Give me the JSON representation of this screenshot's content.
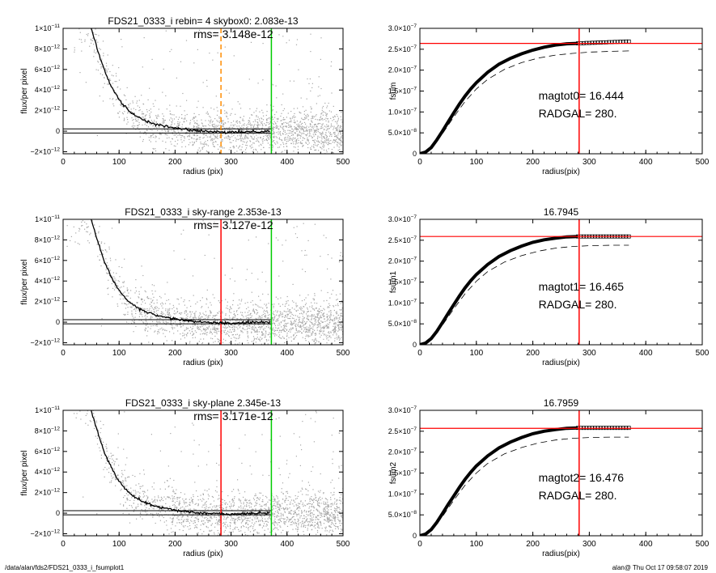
{
  "footer": {
    "path": "/data/alan/fds2/FDS21_0333_i_fsumplot1",
    "stamp": "alan@  Thu Oct 17 09:58:07 2019"
  },
  "chart_data": [
    {
      "type": "scatter",
      "title": "FDS21_0333_i rebin= 4    skybox0:  2.083e-13",
      "annotation": "rms= 3.148e-12",
      "xlabel": "radius (pix)",
      "ylabel": "flux/per pixel",
      "xlim": [
        0,
        500
      ],
      "ylim": [
        -2.2e-12,
        1e-11
      ],
      "x_ticks": [
        0,
        100,
        200,
        300,
        400,
        500
      ],
      "x_tick_labels": [
        "0",
        "100",
        "200",
        "300",
        "400",
        "500"
      ],
      "y_ticks": [
        -2e-12,
        0,
        2e-12,
        4e-12,
        6e-12,
        8e-12,
        1e-11
      ],
      "y_tick_labels": [
        {
          "m": "−2×10",
          "e": "−12"
        },
        {
          "m": "0",
          "e": ""
        },
        {
          "m": "2×10",
          "e": "−12"
        },
        {
          "m": "4×10",
          "e": "−12"
        },
        {
          "m": "6×10",
          "e": "−12"
        },
        {
          "m": "8×10",
          "e": "−12"
        },
        {
          "m": "1×10",
          "e": "−11"
        }
      ],
      "profile": {
        "x": [
          50,
          60,
          70,
          80,
          90,
          100,
          110,
          120,
          130,
          140,
          150,
          170,
          200,
          230,
          260,
          280,
          300,
          330,
          370
        ],
        "y": [
          1e-11,
          8.2e-12,
          6.5e-12,
          5.1e-12,
          4e-12,
          3.1e-12,
          2.4e-12,
          1.9e-12,
          1.5e-12,
          1.2e-12,
          9.5e-13,
          6e-13,
          3e-13,
          1e-13,
          -5e-14,
          -1e-13,
          -1.2e-13,
          -5e-14,
          0
        ],
        "color": "#000000"
      },
      "sky_band": [
        2.2e-13,
        -1.8e-13
      ],
      "vlines": [
        {
          "x": 282,
          "color": "#ff8c00",
          "style": "dashed"
        },
        {
          "x": 372,
          "color": "#00cc00",
          "style": "solid"
        }
      ],
      "hlines": [],
      "scatter_color": "#a6a6a6"
    },
    {
      "type": "line",
      "title": "",
      "annotation_lines": [
        "magtot0=  16.444",
        "RADGAL=    280."
      ],
      "xlabel": "radius(pix)",
      "ylabel": "fsum",
      "xlim": [
        0,
        500
      ],
      "ylim": [
        0,
        3e-07
      ],
      "x_ticks": [
        0,
        100,
        200,
        300,
        400,
        500
      ],
      "x_tick_labels": [
        "0",
        "100",
        "200",
        "300",
        "400",
        "500"
      ],
      "y_ticks": [
        0,
        5e-08,
        1e-07,
        1.5e-07,
        2e-07,
        2.5e-07,
        3e-07
      ],
      "y_tick_labels": [
        {
          "m": "0",
          "e": ""
        },
        {
          "m": "5.0×10",
          "e": "−8"
        },
        {
          "m": "1.0×10",
          "e": "−7"
        },
        {
          "m": "1.5×10",
          "e": "−7"
        },
        {
          "m": "2.0×10",
          "e": "−7"
        },
        {
          "m": "2.5×10",
          "e": "−7"
        },
        {
          "m": "3.0×10",
          "e": "−7"
        }
      ],
      "series": [
        {
          "type": "curve",
          "style": "thick",
          "color": "#000000",
          "x": [
            0,
            10,
            20,
            30,
            40,
            50,
            60,
            70,
            80,
            90,
            100,
            120,
            140,
            160,
            180,
            200,
            220,
            240,
            260,
            280
          ],
          "y": [
            0,
            4e-09,
            1.5e-08,
            3.3e-08,
            5.4e-08,
            7.6e-08,
            9.8e-08,
            1.19e-07,
            1.38e-07,
            1.55e-07,
            1.7e-07,
            1.95e-07,
            2.14e-07,
            2.28e-07,
            2.39e-07,
            2.48e-07,
            2.55e-07,
            2.6e-07,
            2.63e-07,
            2.64e-07
          ]
        },
        {
          "type": "markers",
          "color": "#000000",
          "x": [
            280,
            285,
            290,
            295,
            300,
            305,
            310,
            315,
            320,
            325,
            330,
            335,
            340,
            345,
            350,
            355,
            360,
            365,
            370
          ],
          "y": [
            2.64e-07,
            2.645e-07,
            2.645e-07,
            2.65e-07,
            2.65e-07,
            2.655e-07,
            2.655e-07,
            2.66e-07,
            2.66e-07,
            2.665e-07,
            2.665e-07,
            2.67e-07,
            2.67e-07,
            2.675e-07,
            2.675e-07,
            2.68e-07,
            2.68e-07,
            2.685e-07,
            2.685e-07
          ]
        },
        {
          "type": "curve",
          "style": "dashed",
          "color": "#000000",
          "x": [
            0,
            20,
            40,
            60,
            80,
            100,
            120,
            150,
            180,
            210,
            240,
            270,
            300,
            340,
            370
          ],
          "y": [
            0,
            1.3e-08,
            4.8e-08,
            8.8e-08,
            1.25e-07,
            1.55e-07,
            1.78e-07,
            2.02e-07,
            2.18e-07,
            2.29e-07,
            2.36e-07,
            2.4e-07,
            2.43e-07,
            2.45e-07,
            2.46e-07
          ]
        }
      ],
      "vlines": [
        {
          "x": 282,
          "color": "#ff0000",
          "style": "solid"
        }
      ],
      "hlines": [
        {
          "y": 2.64e-07,
          "color": "#ff0000"
        }
      ]
    },
    {
      "type": "scatter",
      "title": "FDS21_0333_i sky-range  2.353e-13",
      "annotation": "rms= 3.127e-12",
      "xlabel": "radius (pix)",
      "ylabel": "flux/per pixel",
      "xlim": [
        0,
        500
      ],
      "ylim": [
        -2.2e-12,
        1e-11
      ],
      "x_ticks": [
        0,
        100,
        200,
        300,
        400,
        500
      ],
      "x_tick_labels": [
        "0",
        "100",
        "200",
        "300",
        "400",
        "500"
      ],
      "y_ticks": [
        -2e-12,
        0,
        2e-12,
        4e-12,
        6e-12,
        8e-12,
        1e-11
      ],
      "y_tick_labels": [
        {
          "m": "−2×10",
          "e": "−12"
        },
        {
          "m": "0",
          "e": ""
        },
        {
          "m": "2×10",
          "e": "−12"
        },
        {
          "m": "4×10",
          "e": "−12"
        },
        {
          "m": "6×10",
          "e": "−12"
        },
        {
          "m": "8×10",
          "e": "−12"
        },
        {
          "m": "1×10",
          "e": "−11"
        }
      ],
      "profile": {
        "x": [
          50,
          60,
          70,
          80,
          90,
          100,
          110,
          120,
          130,
          140,
          150,
          170,
          200,
          230,
          260,
          280,
          300,
          330,
          370
        ],
        "y": [
          1e-11,
          8.2e-12,
          6.5e-12,
          5.1e-12,
          4e-12,
          3.1e-12,
          2.4e-12,
          1.9e-12,
          1.5e-12,
          1.2e-12,
          9.5e-13,
          6e-13,
          3e-13,
          1e-13,
          -3e-14,
          -8e-14,
          -1e-13,
          -4e-14,
          0
        ],
        "color": "#000000"
      },
      "sky_band": [
        2.4e-13,
        -1.6e-13
      ],
      "vlines": [
        {
          "x": 282,
          "color": "#ff0000",
          "style": "solid"
        },
        {
          "x": 372,
          "color": "#00cc00",
          "style": "solid"
        }
      ],
      "hlines": [],
      "scatter_color": "#a6a6a6"
    },
    {
      "type": "line",
      "title": "16.7945",
      "annotation_lines": [
        "magtot1=  16.465",
        "RADGAL=    280."
      ],
      "xlabel": "radius(pix)",
      "ylabel": "fsum1",
      "xlim": [
        0,
        500
      ],
      "ylim": [
        0,
        3e-07
      ],
      "x_ticks": [
        0,
        100,
        200,
        300,
        400,
        500
      ],
      "x_tick_labels": [
        "0",
        "100",
        "200",
        "300",
        "400",
        "500"
      ],
      "y_ticks": [
        0,
        5e-08,
        1e-07,
        1.5e-07,
        2e-07,
        2.5e-07,
        3e-07
      ],
      "y_tick_labels": [
        {
          "m": "0",
          "e": ""
        },
        {
          "m": "5.0×10",
          "e": "−8"
        },
        {
          "m": "1.0×10",
          "e": "−7"
        },
        {
          "m": "1.5×10",
          "e": "−7"
        },
        {
          "m": "2.0×10",
          "e": "−7"
        },
        {
          "m": "2.5×10",
          "e": "−7"
        },
        {
          "m": "3.0×10",
          "e": "−7"
        }
      ],
      "series": [
        {
          "type": "curve",
          "style": "thick",
          "color": "#000000",
          "x": [
            0,
            10,
            20,
            30,
            40,
            50,
            60,
            70,
            80,
            90,
            100,
            120,
            140,
            160,
            180,
            200,
            220,
            240,
            260,
            280
          ],
          "y": [
            0,
            4e-09,
            1.5e-08,
            3.2e-08,
            5.3e-08,
            7.5e-08,
            9.6e-08,
            1.17e-07,
            1.36e-07,
            1.53e-07,
            1.68e-07,
            1.92e-07,
            2.11e-07,
            2.25e-07,
            2.36e-07,
            2.45e-07,
            2.51e-07,
            2.55e-07,
            2.58e-07,
            2.59e-07
          ]
        },
        {
          "type": "markers",
          "color": "#000000",
          "x": [
            280,
            285,
            290,
            295,
            300,
            305,
            310,
            315,
            320,
            325,
            330,
            335,
            340,
            345,
            350,
            355,
            360,
            365,
            370
          ],
          "y": [
            2.59e-07,
            2.59e-07,
            2.59e-07,
            2.59e-07,
            2.59e-07,
            2.59e-07,
            2.59e-07,
            2.59e-07,
            2.59e-07,
            2.59e-07,
            2.59e-07,
            2.59e-07,
            2.59e-07,
            2.59e-07,
            2.59e-07,
            2.59e-07,
            2.59e-07,
            2.59e-07,
            2.59e-07
          ]
        },
        {
          "type": "curve",
          "style": "dashed",
          "color": "#000000",
          "x": [
            0,
            20,
            40,
            60,
            80,
            100,
            120,
            150,
            180,
            210,
            240,
            270,
            300,
            340,
            370
          ],
          "y": [
            0,
            1.3e-08,
            4.7e-08,
            8.6e-08,
            1.22e-07,
            1.52e-07,
            1.75e-07,
            1.98e-07,
            2.13e-07,
            2.24e-07,
            2.31e-07,
            2.35e-07,
            2.37e-07,
            2.38e-07,
            2.38e-07
          ]
        }
      ],
      "vlines": [
        {
          "x": 282,
          "color": "#ff0000",
          "style": "solid"
        }
      ],
      "hlines": [
        {
          "y": 2.59e-07,
          "color": "#ff0000"
        }
      ]
    },
    {
      "type": "scatter",
      "title": "FDS21_0333_i sky-plane  2.345e-13",
      "annotation": "rms= 3.171e-12",
      "xlabel": "radius (pix)",
      "ylabel": "flux/per pixel",
      "xlim": [
        0,
        500
      ],
      "ylim": [
        -2.2e-12,
        1e-11
      ],
      "x_ticks": [
        0,
        100,
        200,
        300,
        400,
        500
      ],
      "x_tick_labels": [
        "0",
        "100",
        "200",
        "300",
        "400",
        "500"
      ],
      "y_ticks": [
        -2e-12,
        0,
        2e-12,
        4e-12,
        6e-12,
        8e-12,
        1e-11
      ],
      "y_tick_labels": [
        {
          "m": "−2×10",
          "e": "−12"
        },
        {
          "m": "0",
          "e": ""
        },
        {
          "m": "2×10",
          "e": "−12"
        },
        {
          "m": "4×10",
          "e": "−12"
        },
        {
          "m": "6×10",
          "e": "−12"
        },
        {
          "m": "8×10",
          "e": "−12"
        },
        {
          "m": "1×10",
          "e": "−11"
        }
      ],
      "profile": {
        "x": [
          50,
          60,
          70,
          80,
          90,
          100,
          110,
          120,
          130,
          140,
          150,
          170,
          200,
          230,
          260,
          280,
          300,
          330,
          370
        ],
        "y": [
          1e-11,
          8.2e-12,
          6.5e-12,
          5.1e-12,
          4e-12,
          3.1e-12,
          2.4e-12,
          1.9e-12,
          1.5e-12,
          1.2e-12,
          9.5e-13,
          6e-13,
          3e-13,
          1e-13,
          -3e-14,
          -8e-14,
          -1e-13,
          -4e-14,
          0
        ],
        "color": "#000000"
      },
      "sky_band": [
        2.4e-13,
        -1.6e-13
      ],
      "vlines": [
        {
          "x": 282,
          "color": "#ff0000",
          "style": "solid"
        },
        {
          "x": 372,
          "color": "#00cc00",
          "style": "solid"
        }
      ],
      "hlines": [],
      "scatter_color": "#a6a6a6"
    },
    {
      "type": "line",
      "title": "16.7959",
      "annotation_lines": [
        "magtot2=  16.476",
        "RADGAL=    280."
      ],
      "xlabel": "radius(pix)",
      "ylabel": "fsum2",
      "xlim": [
        0,
        500
      ],
      "ylim": [
        0,
        3e-07
      ],
      "x_ticks": [
        0,
        100,
        200,
        300,
        400,
        500
      ],
      "x_tick_labels": [
        "0",
        "100",
        "200",
        "300",
        "400",
        "500"
      ],
      "y_ticks": [
        0,
        5e-08,
        1e-07,
        1.5e-07,
        2e-07,
        2.5e-07,
        3e-07
      ],
      "y_tick_labels": [
        {
          "m": "0",
          "e": ""
        },
        {
          "m": "5.0×10",
          "e": "−8"
        },
        {
          "m": "1.0×10",
          "e": "−7"
        },
        {
          "m": "1.5×10",
          "e": "−7"
        },
        {
          "m": "2.0×10",
          "e": "−7"
        },
        {
          "m": "2.5×10",
          "e": "−7"
        },
        {
          "m": "3.0×10",
          "e": "−7"
        }
      ],
      "series": [
        {
          "type": "curve",
          "style": "thick",
          "color": "#000000",
          "x": [
            0,
            10,
            20,
            30,
            40,
            50,
            60,
            70,
            80,
            90,
            100,
            120,
            140,
            160,
            180,
            200,
            220,
            240,
            260,
            280
          ],
          "y": [
            0,
            4e-09,
            1.5e-08,
            3.2e-08,
            5.3e-08,
            7.5e-08,
            9.5e-08,
            1.16e-07,
            1.35e-07,
            1.52e-07,
            1.67e-07,
            1.91e-07,
            2.1e-07,
            2.24e-07,
            2.35e-07,
            2.44e-07,
            2.5e-07,
            2.54e-07,
            2.57e-07,
            2.58e-07
          ]
        },
        {
          "type": "markers",
          "color": "#000000",
          "x": [
            280,
            285,
            290,
            295,
            300,
            305,
            310,
            315,
            320,
            325,
            330,
            335,
            340,
            345,
            350,
            355,
            360,
            365,
            370
          ],
          "y": [
            2.58e-07,
            2.58e-07,
            2.58e-07,
            2.58e-07,
            2.58e-07,
            2.58e-07,
            2.58e-07,
            2.58e-07,
            2.58e-07,
            2.58e-07,
            2.58e-07,
            2.58e-07,
            2.58e-07,
            2.58e-07,
            2.58e-07,
            2.58e-07,
            2.58e-07,
            2.58e-07,
            2.58e-07
          ]
        },
        {
          "type": "curve",
          "style": "dashed",
          "color": "#000000",
          "x": [
            0,
            20,
            40,
            60,
            80,
            100,
            120,
            150,
            180,
            210,
            240,
            270,
            300,
            340,
            370
          ],
          "y": [
            0,
            1.3e-08,
            4.6e-08,
            8.5e-08,
            1.21e-07,
            1.5e-07,
            1.73e-07,
            1.96e-07,
            2.11e-07,
            2.22e-07,
            2.29e-07,
            2.33e-07,
            2.35e-07,
            2.36e-07,
            2.36e-07
          ]
        }
      ],
      "vlines": [
        {
          "x": 282,
          "color": "#ff0000",
          "style": "solid"
        }
      ],
      "hlines": [
        {
          "y": 2.57e-07,
          "color": "#ff0000"
        }
      ]
    }
  ]
}
